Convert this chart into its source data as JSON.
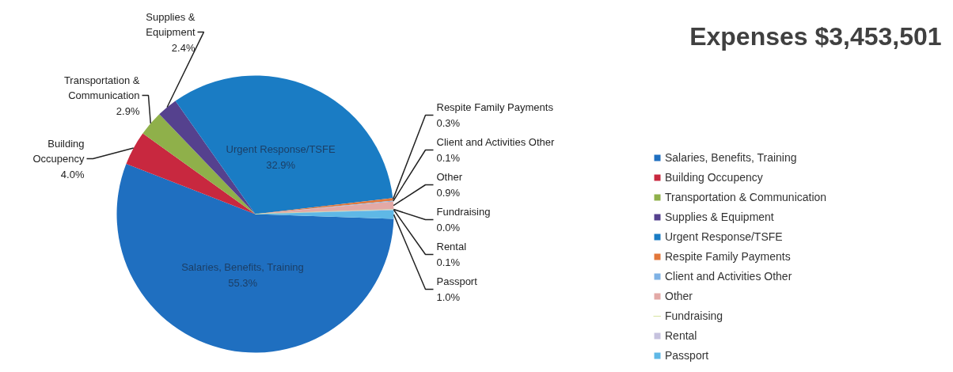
{
  "chart_data": {
    "type": "pie",
    "title": "Expenses  $3,453,501",
    "categories": [
      "Salaries, Benefits, Training",
      "Building Occupency",
      "Transportation & Communication",
      "Supplies & Equipment",
      "Urgent Response/TSFE",
      "Respite Family Payments",
      "Client and Activities Other",
      "Other",
      "Fundraising",
      "Rental",
      "Passport"
    ],
    "values": [
      55.3,
      4.0,
      2.9,
      2.4,
      32.9,
      0.3,
      0.1,
      0.9,
      0.0,
      0.1,
      1.0
    ],
    "value_labels": [
      "55.3%",
      "4.0%",
      "2.9%",
      "2.4%",
      "32.9%",
      "0.3%",
      "0.1%",
      "0.9%",
      "0.0%",
      "0.1%",
      "1.0%"
    ],
    "colors": [
      "#1f6fc0",
      "#c8283f",
      "#8fb04a",
      "#55418e",
      "#1a7cc4",
      "#e2773a",
      "#7fb2e5",
      "#e3a9a6",
      "#d6e3a0",
      "#c6c2de",
      "#5fb8e6"
    ],
    "legend": "right"
  }
}
